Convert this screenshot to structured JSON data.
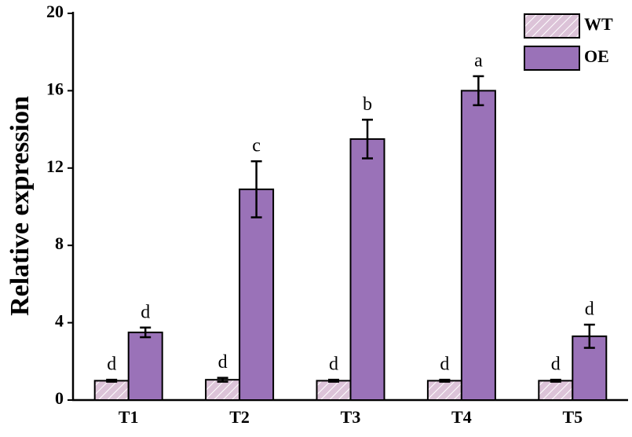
{
  "chart_data": {
    "type": "bar",
    "ylabel": "Relative expression",
    "categories": [
      "T1",
      "T2",
      "T3",
      "T4",
      "T5"
    ],
    "series": [
      {
        "name": "WT",
        "color": "#dcc3d8",
        "hatch": true,
        "values": [
          1.0,
          1.05,
          1.0,
          1.0,
          1.0
        ],
        "errors": [
          0.05,
          0.1,
          0.05,
          0.05,
          0.05
        ],
        "letters": [
          "d",
          "d",
          "d",
          "d",
          "d"
        ]
      },
      {
        "name": "OE",
        "color": "#9a72b8",
        "hatch": false,
        "values": [
          3.5,
          10.9,
          13.5,
          16.0,
          3.3
        ],
        "errors": [
          0.25,
          1.45,
          1.0,
          0.75,
          0.6
        ],
        "letters": [
          "d",
          "c",
          "b",
          "a",
          "d"
        ]
      }
    ],
    "ylim": [
      0,
      20
    ],
    "yticks": [
      0,
      4,
      8,
      12,
      16,
      20
    ],
    "grid": false,
    "legend": "upper right"
  }
}
